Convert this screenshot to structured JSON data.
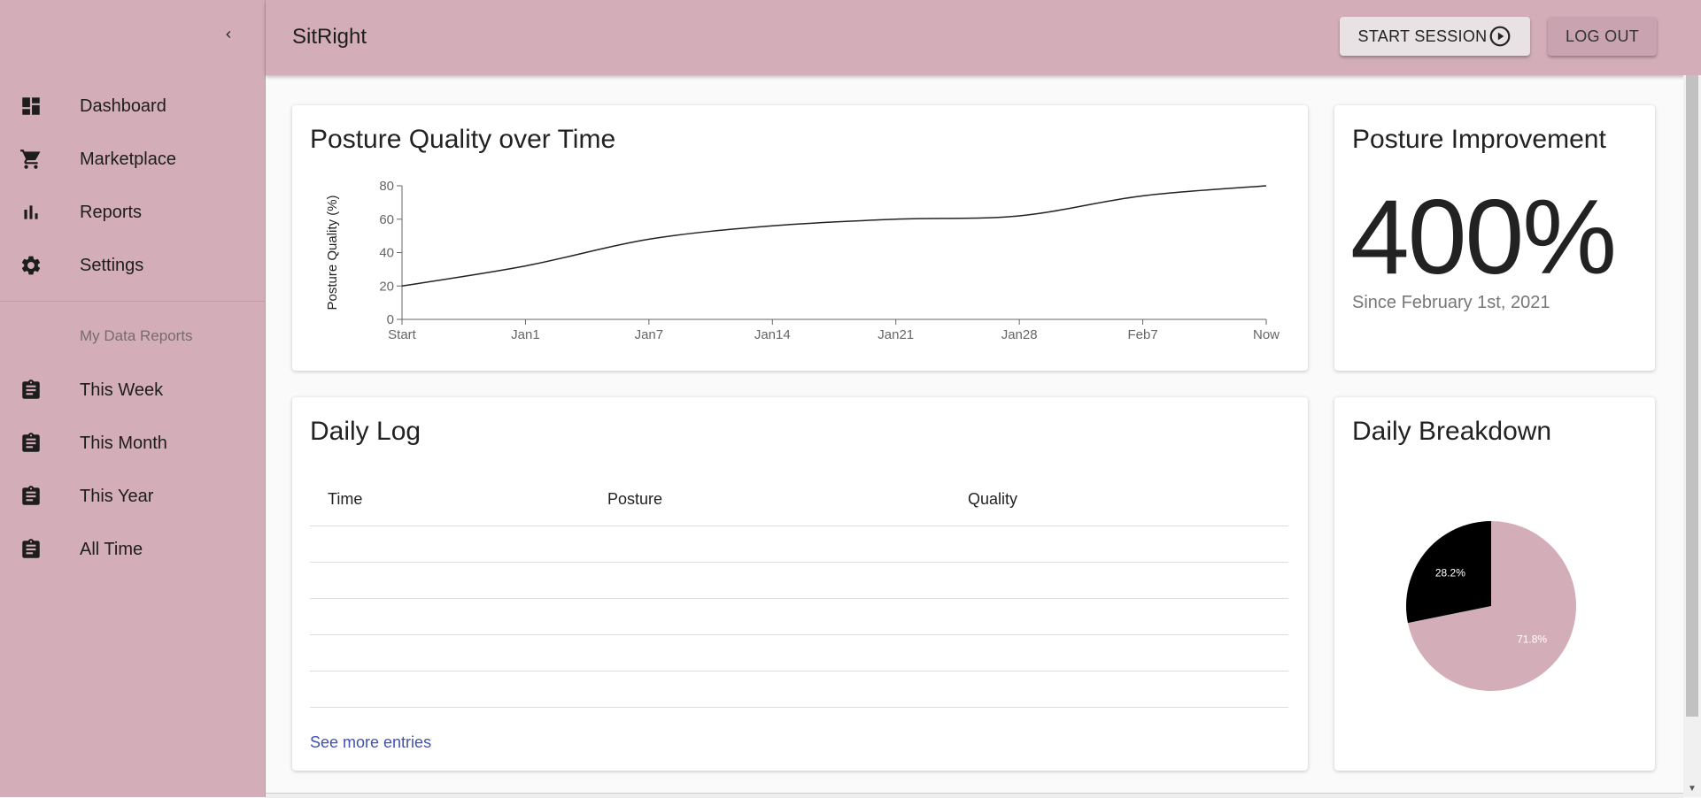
{
  "app": {
    "title": "SitRight"
  },
  "header": {
    "start_label": "START SESSION",
    "logout_label": "LOG OUT"
  },
  "sidebar": {
    "items": [
      {
        "label": "Dashboard",
        "icon": "dashboard-icon"
      },
      {
        "label": "Marketplace",
        "icon": "cart-icon"
      },
      {
        "label": "Reports",
        "icon": "bar-chart-icon"
      },
      {
        "label": "Settings",
        "icon": "gear-icon"
      }
    ],
    "section_title": "My Data Reports",
    "reports": [
      {
        "label": "This Week",
        "icon": "clipboard-icon"
      },
      {
        "label": "This Month",
        "icon": "clipboard-icon"
      },
      {
        "label": "This Year",
        "icon": "clipboard-icon"
      },
      {
        "label": "All Time",
        "icon": "clipboard-icon"
      }
    ]
  },
  "posture_chart": {
    "title": "Posture Quality over Time"
  },
  "improvement": {
    "title": "Posture Improvement",
    "value": "400%",
    "since": "Since February 1st, 2021"
  },
  "daily_log": {
    "title": "Daily Log",
    "columns": [
      "Time",
      "Posture",
      "Quality"
    ],
    "rows": 5,
    "more_label": "See more entries"
  },
  "breakdown": {
    "title": "Daily Breakdown"
  },
  "colors": {
    "accent": "#d3aeb9",
    "line": "#222222",
    "pie_dark": "#000000",
    "pie_light": "#d3aeb9",
    "link": "#3f51b5"
  },
  "chart_data": [
    {
      "type": "line",
      "title": "Posture Quality over Time",
      "ylabel": "Posture Quality (%)",
      "xlabel": "",
      "categories": [
        "Start",
        "Jan1",
        "Jan7",
        "Jan14",
        "Jan21",
        "Jan28",
        "Feb7",
        "Now"
      ],
      "values": [
        20,
        32,
        48,
        56,
        60,
        62,
        74,
        80
      ],
      "ylim": [
        0,
        80
      ],
      "yticks": [
        0,
        20,
        40,
        60,
        80
      ],
      "grid": false
    },
    {
      "type": "pie",
      "title": "Daily Breakdown",
      "slices": [
        {
          "value": 71.8,
          "label": "71.8%",
          "color": "#d3aeb9"
        },
        {
          "value": 28.2,
          "label": "28.2%",
          "color": "#000000"
        }
      ]
    }
  ]
}
